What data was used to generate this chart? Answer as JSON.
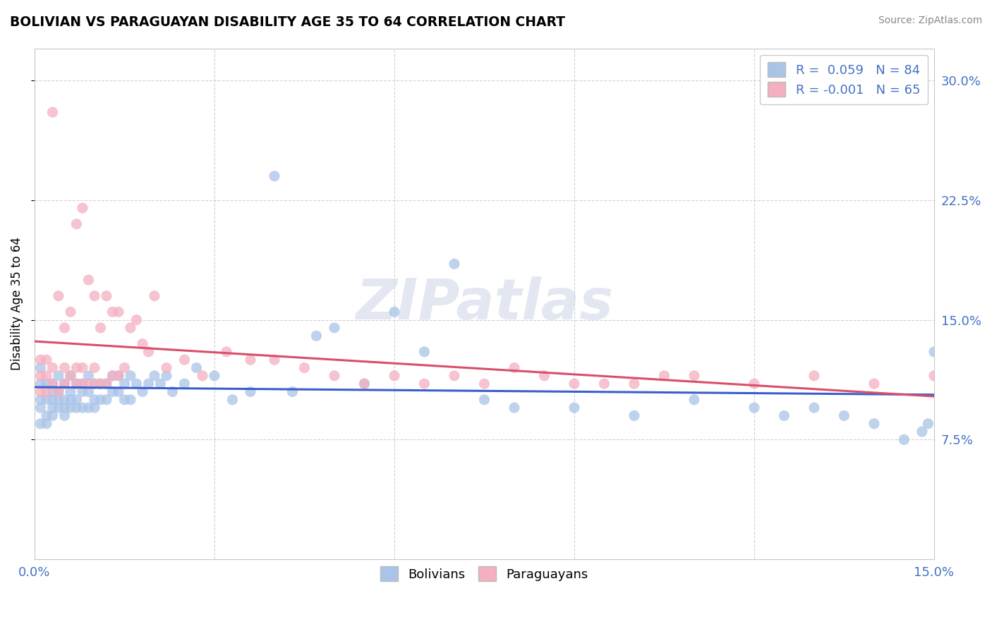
{
  "title": "BOLIVIAN VS PARAGUAYAN DISABILITY AGE 35 TO 64 CORRELATION CHART",
  "source": "Source: ZipAtlas.com",
  "ylabel": "Disability Age 35 to 64",
  "xlim": [
    0.0,
    0.15
  ],
  "ylim": [
    0.0,
    0.32
  ],
  "xticks": [
    0.0,
    0.03,
    0.06,
    0.09,
    0.12,
    0.15
  ],
  "xtick_labels": [
    "0.0%",
    "",
    "",
    "",
    "",
    "15.0%"
  ],
  "yticks": [
    0.075,
    0.15,
    0.225,
    0.3
  ],
  "ytick_labels": [
    "7.5%",
    "15.0%",
    "22.5%",
    "30.0%"
  ],
  "bolivian_color": "#aac4e8",
  "paraguayan_color": "#f4afc0",
  "bolivian_line_color": "#3a5fcd",
  "paraguayan_line_color": "#d94f6a",
  "legend_R_bolivian": "R =  0.059   N = 84",
  "legend_R_paraguayan": "R = -0.001   N = 65",
  "bolivian_x": [
    0.001,
    0.001,
    0.001,
    0.001,
    0.001,
    0.002,
    0.002,
    0.002,
    0.002,
    0.003,
    0.003,
    0.003,
    0.003,
    0.003,
    0.004,
    0.004,
    0.004,
    0.004,
    0.005,
    0.005,
    0.005,
    0.005,
    0.006,
    0.006,
    0.006,
    0.006,
    0.007,
    0.007,
    0.007,
    0.008,
    0.008,
    0.008,
    0.009,
    0.009,
    0.009,
    0.01,
    0.01,
    0.01,
    0.011,
    0.011,
    0.012,
    0.012,
    0.013,
    0.013,
    0.014,
    0.014,
    0.015,
    0.015,
    0.016,
    0.016,
    0.017,
    0.018,
    0.019,
    0.02,
    0.021,
    0.022,
    0.023,
    0.025,
    0.027,
    0.03,
    0.033,
    0.036,
    0.04,
    0.043,
    0.047,
    0.05,
    0.055,
    0.06,
    0.065,
    0.07,
    0.075,
    0.08,
    0.09,
    0.1,
    0.11,
    0.12,
    0.125,
    0.13,
    0.135,
    0.14,
    0.145,
    0.148,
    0.149,
    0.15
  ],
  "bolivian_y": [
    0.095,
    0.11,
    0.1,
    0.085,
    0.12,
    0.1,
    0.09,
    0.11,
    0.085,
    0.095,
    0.105,
    0.11,
    0.09,
    0.1,
    0.095,
    0.105,
    0.115,
    0.1,
    0.09,
    0.1,
    0.11,
    0.095,
    0.095,
    0.105,
    0.115,
    0.1,
    0.1,
    0.11,
    0.095,
    0.095,
    0.105,
    0.11,
    0.095,
    0.105,
    0.115,
    0.1,
    0.11,
    0.095,
    0.1,
    0.11,
    0.1,
    0.11,
    0.105,
    0.115,
    0.105,
    0.115,
    0.1,
    0.11,
    0.1,
    0.115,
    0.11,
    0.105,
    0.11,
    0.115,
    0.11,
    0.115,
    0.105,
    0.11,
    0.12,
    0.115,
    0.1,
    0.105,
    0.24,
    0.105,
    0.14,
    0.145,
    0.11,
    0.155,
    0.13,
    0.185,
    0.1,
    0.095,
    0.095,
    0.09,
    0.1,
    0.095,
    0.09,
    0.095,
    0.09,
    0.085,
    0.075,
    0.08,
    0.085,
    0.13
  ],
  "paraguayan_x": [
    0.001,
    0.001,
    0.001,
    0.002,
    0.002,
    0.002,
    0.003,
    0.003,
    0.003,
    0.004,
    0.004,
    0.005,
    0.005,
    0.005,
    0.006,
    0.006,
    0.007,
    0.007,
    0.007,
    0.008,
    0.008,
    0.008,
    0.009,
    0.009,
    0.01,
    0.01,
    0.01,
    0.011,
    0.011,
    0.012,
    0.012,
    0.013,
    0.013,
    0.014,
    0.014,
    0.015,
    0.016,
    0.017,
    0.018,
    0.019,
    0.02,
    0.022,
    0.025,
    0.028,
    0.032,
    0.036,
    0.04,
    0.045,
    0.05,
    0.055,
    0.06,
    0.065,
    0.07,
    0.075,
    0.08,
    0.085,
    0.09,
    0.095,
    0.1,
    0.105,
    0.11,
    0.12,
    0.13,
    0.14,
    0.15
  ],
  "paraguayan_y": [
    0.105,
    0.115,
    0.125,
    0.105,
    0.115,
    0.125,
    0.11,
    0.12,
    0.28,
    0.105,
    0.165,
    0.11,
    0.12,
    0.145,
    0.115,
    0.155,
    0.11,
    0.12,
    0.21,
    0.11,
    0.12,
    0.22,
    0.11,
    0.175,
    0.11,
    0.12,
    0.165,
    0.11,
    0.145,
    0.11,
    0.165,
    0.115,
    0.155,
    0.115,
    0.155,
    0.12,
    0.145,
    0.15,
    0.135,
    0.13,
    0.165,
    0.12,
    0.125,
    0.115,
    0.13,
    0.125,
    0.125,
    0.12,
    0.115,
    0.11,
    0.115,
    0.11,
    0.115,
    0.11,
    0.12,
    0.115,
    0.11,
    0.11,
    0.11,
    0.115,
    0.115,
    0.11,
    0.115,
    0.11,
    0.115
  ]
}
